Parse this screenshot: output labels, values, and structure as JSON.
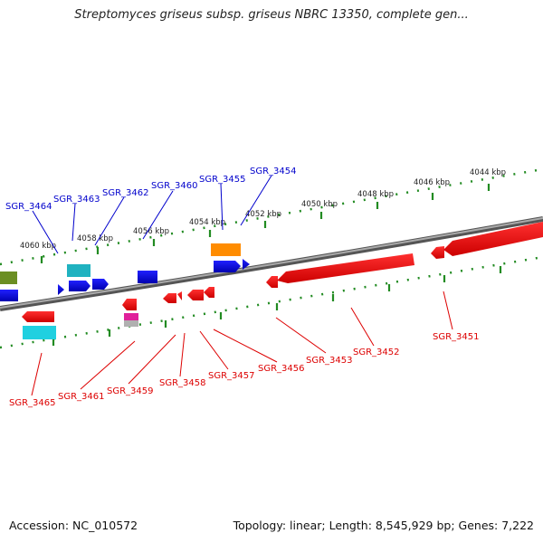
{
  "title": "Streptomyces griseus subsp. griseus NBRC 13350, complete gen...",
  "accession": "Accession: NC_010572",
  "topology": "Topology: linear; Length: 8,545,929 bp; Genes: 7,222",
  "colors": {
    "upper_label": "#0000cc",
    "lower_label": "#dd0000",
    "track": "#888888",
    "tick": "#228b22"
  },
  "kbp_labels": [
    "4044 kbp",
    "4046 kbp",
    "4048 kbp",
    "4050 kbp",
    "4052 kbp",
    "4054 kbp",
    "4056 kbp",
    "4058 kbp",
    "4060 kbp"
  ],
  "upper_genes": [
    "SGR_3464",
    "SGR_3463",
    "SGR_3462",
    "SGR_3460",
    "SGR_3455",
    "SGR_3454"
  ],
  "lower_genes": [
    "SGR_3465",
    "SGR_3461",
    "SGR_3459",
    "SGR_3458",
    "SGR_3457",
    "SGR_3456",
    "SGR_3453",
    "SGR_3452",
    "SGR_3451"
  ]
}
